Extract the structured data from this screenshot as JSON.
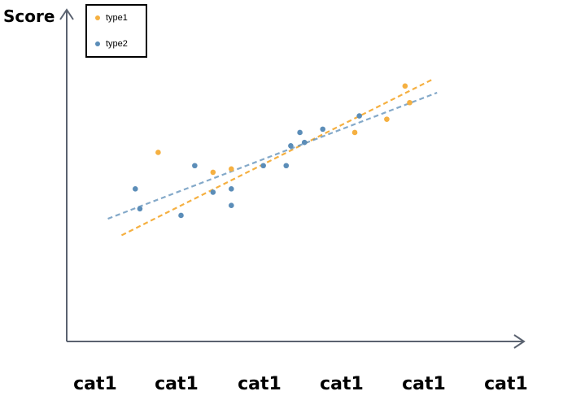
{
  "chart_data": {
    "type": "scatter",
    "ylabel": "Score",
    "xlabel": "",
    "x_tick_labels": [
      "cat1",
      "cat1",
      "cat1",
      "cat1",
      "cat1",
      "cat1"
    ],
    "xlim": [
      0,
      100
    ],
    "ylim": [
      0,
      100
    ],
    "grid": false,
    "legend_position": "top-left",
    "series": [
      {
        "name": "type1",
        "color": "#F5B041",
        "points": [
          [
            20,
            57
          ],
          [
            32,
            51
          ],
          [
            36,
            52
          ],
          [
            63,
            63
          ],
          [
            70,
            67
          ],
          [
            74,
            77
          ],
          [
            75,
            72
          ]
        ],
        "trendline": [
          [
            12,
            32
          ],
          [
            80,
            79
          ]
        ]
      },
      {
        "name": "type2",
        "color": "#5B8DB8",
        "points": [
          [
            15,
            46
          ],
          [
            16,
            40
          ],
          [
            25,
            38
          ],
          [
            28,
            53
          ],
          [
            32,
            45
          ],
          [
            36,
            46
          ],
          [
            36,
            41
          ],
          [
            43,
            53
          ],
          [
            48,
            53
          ],
          [
            49,
            59
          ],
          [
            51,
            63
          ],
          [
            52,
            60
          ],
          [
            56,
            64
          ],
          [
            64,
            68
          ]
        ],
        "trendline": [
          [
            9,
            37
          ],
          [
            81,
            75
          ]
        ]
      }
    ]
  }
}
